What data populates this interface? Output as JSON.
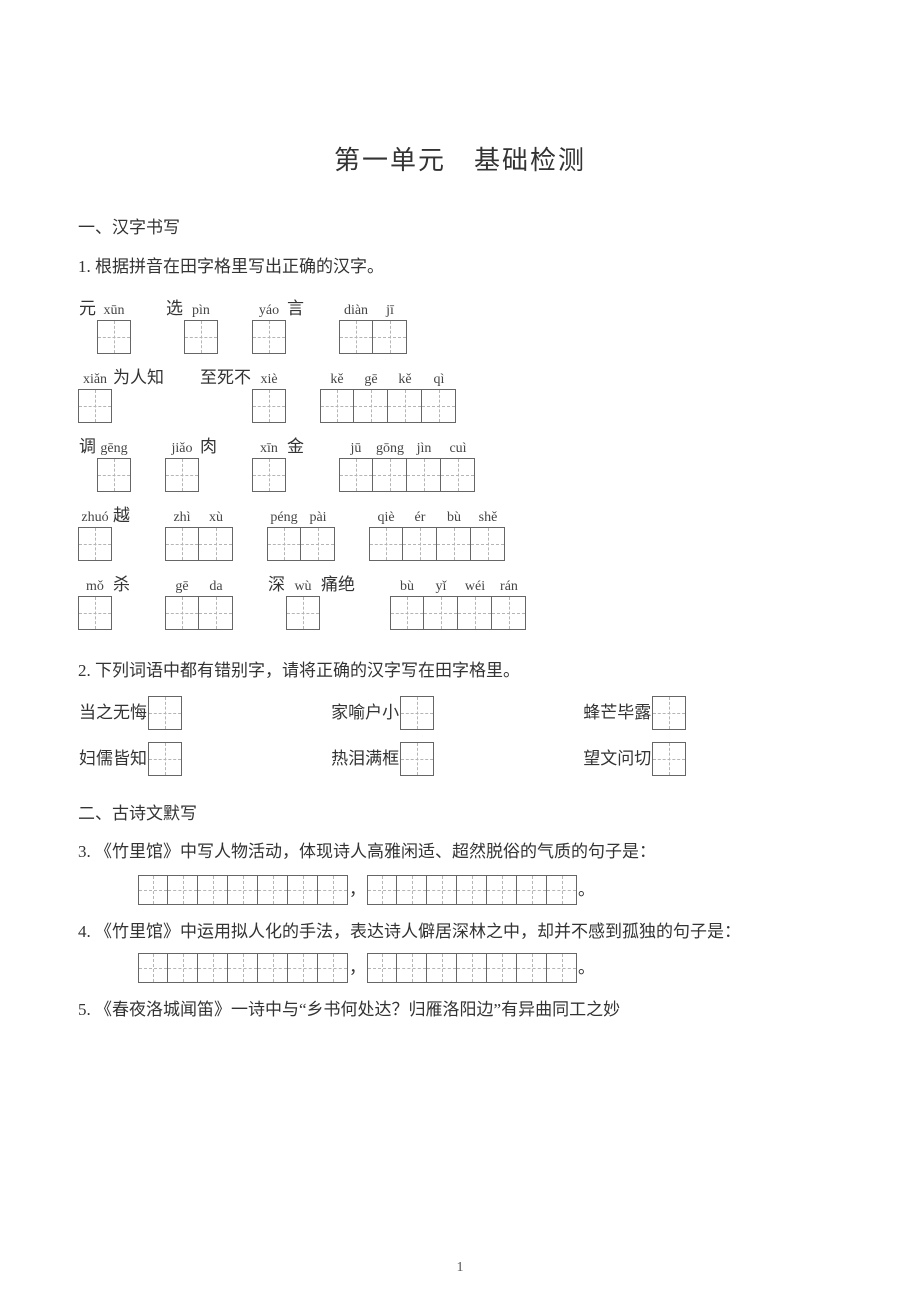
{
  "title": "第一单元　基础检测",
  "section1": "一、汉字书写",
  "q1": "1. 根据拼音在田字格里写出正确的汉字。",
  "rows": [
    [
      {
        "pre": "元",
        "py": [
          "xūn"
        ],
        "cells": 1
      },
      {
        "pre": "选",
        "py": [
          "pìn"
        ],
        "cells": 1
      },
      {
        "py": [
          "yáo"
        ],
        "cells": 1,
        "post": "言"
      },
      {
        "py": [
          "diàn",
          "jī"
        ],
        "cells": 2
      }
    ],
    [
      {
        "py": [
          "xiǎn"
        ],
        "cells": 1,
        "post": "为人知"
      },
      {
        "pre": "至死不",
        "py": [
          "xiè"
        ],
        "cells": 1
      },
      {
        "py": [
          "kě",
          "gē",
          "kě",
          "qì"
        ],
        "cells": 4
      }
    ],
    [
      {
        "pre": "调",
        "py": [
          "gēng"
        ],
        "cells": 1
      },
      {
        "py": [
          "jiǎo"
        ],
        "cells": 1,
        "post": "肉"
      },
      {
        "py": [
          "xīn"
        ],
        "cells": 1,
        "post": "金"
      },
      {
        "py": [
          "jū",
          "gōng",
          "jìn",
          "cuì"
        ],
        "cells": 4
      }
    ],
    [
      {
        "py": [
          "zhuó"
        ],
        "cells": 1,
        "post": "越"
      },
      {
        "py": [
          "zhì",
          "xù"
        ],
        "cells": 2
      },
      {
        "py": [
          "péng",
          "pài"
        ],
        "cells": 2
      },
      {
        "py": [
          "qiè",
          "ér",
          "bù",
          "shě"
        ],
        "cells": 4
      }
    ],
    [
      {
        "py": [
          "mǒ"
        ],
        "cells": 1,
        "post": "杀"
      },
      {
        "py": [
          "gē",
          "da"
        ],
        "cells": 2
      },
      {
        "pre": "深",
        "py": [
          "wù"
        ],
        "cells": 1,
        "post": "痛绝"
      },
      {
        "py": [
          "bù",
          "yǐ",
          "wéi",
          "rán"
        ],
        "cells": 4
      }
    ]
  ],
  "q2": "2. 下列词语中都有错别字，请将正确的汉字写在田字格里。",
  "q2rows": [
    [
      "当之无悔",
      "家喻户小",
      "蜂芒毕露"
    ],
    [
      "妇儒皆知",
      "热泪满框",
      "望文问切"
    ]
  ],
  "section2": "二、古诗文默写",
  "q3": {
    "n": "3.",
    "text": "《竹里馆》中写人物活动，体现诗人高雅闲适、超然脱俗的气质的句子是："
  },
  "q4": {
    "n": "4.",
    "text": "《竹里馆》中运用拟人化的手法，表达诗人僻居深林之中，却并不感到孤独的句子是："
  },
  "q5": {
    "n": "5.",
    "text": "《春夜洛城闻笛》一诗中与“乡书何处达？归雁洛阳边”有异曲同工之妙"
  },
  "page_number": "1",
  "punct": {
    "comma": "，",
    "period": "。",
    "colon": "："
  }
}
